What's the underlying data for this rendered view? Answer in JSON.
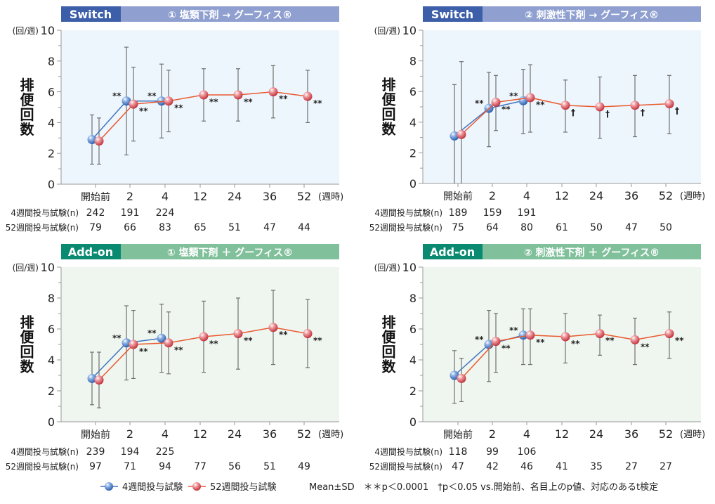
{
  "colors": {
    "switch_dark": "#3d5fa9",
    "switch_light": "#8e9fd0",
    "addon_dark": "#0a8a70",
    "addon_light": "#80c09b",
    "switch_plot_bg": "#eef6fd",
    "addon_plot_bg": "#eff6ef",
    "series_4wk": "#3f74c0",
    "series_52wk": "#e85a30",
    "marker_52wk": "#d9535a",
    "error_bar": "#707070"
  },
  "legend": {
    "series_4wk": "4週間投与試験",
    "series_52wk": "52週間投与試験",
    "note": "Mean±SD　＊＊p＜0.0001　†p＜0.05  vs.開始前、名目上のp値、対応のあるt検定"
  },
  "chart_data": [
    {
      "type": "line",
      "tag": "Switch",
      "title": "① 塩類下剤 → グーフィス®",
      "ylabel": "排便回数",
      "yunit": "(回/週)",
      "xunit": "(週時)",
      "ylim": [
        0,
        10
      ],
      "yticks": [
        0,
        2,
        4,
        6,
        8,
        10
      ],
      "categories": [
        "開始前",
        "2",
        "4",
        "12",
        "24",
        "36",
        "52"
      ],
      "n_labels": [
        "4週間投与試験(n)",
        "52週間投与試験(n)"
      ],
      "series": [
        {
          "name": "4週間投与試験",
          "mean": [
            2.9,
            5.4,
            5.4
          ],
          "sd_low": [
            1.3,
            1.9,
            3.0
          ],
          "sd_high": [
            4.5,
            8.9,
            7.8
          ],
          "sig": [
            "",
            "**",
            "**"
          ],
          "n": [
            "242",
            "191",
            "224"
          ]
        },
        {
          "name": "52週間投与試験",
          "mean": [
            2.8,
            5.2,
            5.4,
            5.8,
            5.8,
            6.0,
            5.7
          ],
          "sd_low": [
            1.3,
            2.8,
            3.4,
            4.1,
            4.1,
            4.3,
            4.0
          ],
          "sd_high": [
            4.3,
            7.6,
            7.4,
            7.5,
            7.5,
            7.7,
            7.4
          ],
          "sig": [
            "",
            "**",
            "**",
            "**",
            "**",
            "**",
            "**"
          ],
          "n": [
            "79",
            "66",
            "83",
            "65",
            "51",
            "47",
            "44"
          ]
        }
      ]
    },
    {
      "type": "line",
      "tag": "Switch",
      "title": "② 刺激性下剤 → グーフィス®",
      "ylabel": "排便回数",
      "yunit": "(回/週)",
      "xunit": "(週時)",
      "ylim": [
        0,
        10
      ],
      "yticks": [
        0,
        2,
        4,
        6,
        8,
        10
      ],
      "categories": [
        "開始前",
        "2",
        "4",
        "12",
        "24",
        "36",
        "52"
      ],
      "n_labels": [
        "4週間投与試験(n)",
        "52週間投与試験(n)"
      ],
      "series": [
        {
          "name": "4週間投与試験",
          "mean": [
            3.1,
            4.9,
            5.4
          ],
          "sd_low": [
            0,
            2.4,
            3.25
          ],
          "sd_high": [
            6.45,
            7.25,
            7.45
          ],
          "sig": [
            "",
            "**",
            "**"
          ],
          "n": [
            "189",
            "159",
            "191"
          ]
        },
        {
          "name": "52週間投与試験",
          "mean": [
            3.2,
            5.3,
            5.6,
            5.1,
            5.0,
            5.1,
            5.2
          ],
          "sd_low": [
            0,
            3.45,
            3.35,
            3.35,
            2.95,
            3.05,
            3.25
          ],
          "sd_high": [
            7.95,
            7.05,
            7.75,
            6.75,
            6.95,
            7.05,
            7.05
          ],
          "sig": [
            "",
            "**",
            "**",
            "†",
            "†",
            "†",
            "†"
          ],
          "n": [
            "75",
            "64",
            "80",
            "61",
            "50",
            "47",
            "50"
          ]
        }
      ]
    },
    {
      "type": "line",
      "tag": "Add-on",
      "title": "① 塩類下剤 ＋ グーフィス®",
      "ylabel": "排便回数",
      "yunit": "(回/週)",
      "xunit": "(週時)",
      "ylim": [
        0,
        10
      ],
      "yticks": [
        0,
        2,
        4,
        6,
        8,
        10
      ],
      "categories": [
        "開始前",
        "2",
        "4",
        "12",
        "24",
        "36",
        "52"
      ],
      "n_labels": [
        "4週間投与試験(n)",
        "52週間投与試験(n)"
      ],
      "series": [
        {
          "name": "4週間投与試験",
          "mean": [
            2.8,
            5.1,
            5.4
          ],
          "sd_low": [
            1.1,
            2.7,
            3.2
          ],
          "sd_high": [
            4.5,
            7.5,
            7.6
          ],
          "sig": [
            "",
            "**",
            "**"
          ],
          "n": [
            "239",
            "194",
            "225"
          ]
        },
        {
          "name": "52週間投与試験",
          "mean": [
            2.7,
            5.0,
            5.1,
            5.5,
            5.7,
            6.1,
            5.7
          ],
          "sd_low": [
            0.9,
            2.8,
            3.1,
            3.2,
            3.4,
            3.7,
            3.5
          ],
          "sd_high": [
            4.5,
            7.2,
            7.1,
            7.8,
            8.0,
            8.5,
            7.9
          ],
          "sig": [
            "",
            "**",
            "**",
            "**",
            "**",
            "**",
            "**"
          ],
          "n": [
            "97",
            "71",
            "94",
            "77",
            "56",
            "51",
            "49"
          ]
        }
      ]
    },
    {
      "type": "line",
      "tag": "Add-on",
      "title": "② 刺激性下剤 ＋ グーフィス®",
      "ylabel": "排便回数",
      "yunit": "(回/週)",
      "xunit": "(週時)",
      "ylim": [
        0,
        10
      ],
      "yticks": [
        0,
        2,
        4,
        6,
        8,
        10
      ],
      "categories": [
        "開始前",
        "2",
        "4",
        "12",
        "24",
        "36",
        "52"
      ],
      "n_labels": [
        "4週間投与試験(n)",
        "52週間投与試験(n)"
      ],
      "series": [
        {
          "name": "4週間投与試験",
          "mean": [
            3.0,
            5.0,
            5.6
          ],
          "sd_low": [
            1.2,
            2.6,
            3.7
          ],
          "sd_high": [
            4.6,
            7.2,
            7.3
          ],
          "sig": [
            "",
            "**",
            "**"
          ],
          "n": [
            "118",
            "99",
            "106"
          ]
        },
        {
          "name": "52週間投与試験",
          "mean": [
            2.8,
            5.2,
            5.6,
            5.5,
            5.7,
            5.3,
            5.7
          ],
          "sd_low": [
            1.3,
            3.2,
            3.7,
            3.8,
            4.3,
            3.7,
            4.1
          ],
          "sd_high": [
            4.1,
            7.0,
            7.3,
            7.0,
            6.9,
            6.7,
            7.1
          ],
          "sig": [
            "",
            "**",
            "**",
            "**",
            "**",
            "**",
            "**"
          ],
          "n": [
            "47",
            "42",
            "46",
            "41",
            "35",
            "27",
            "27"
          ]
        }
      ]
    }
  ]
}
